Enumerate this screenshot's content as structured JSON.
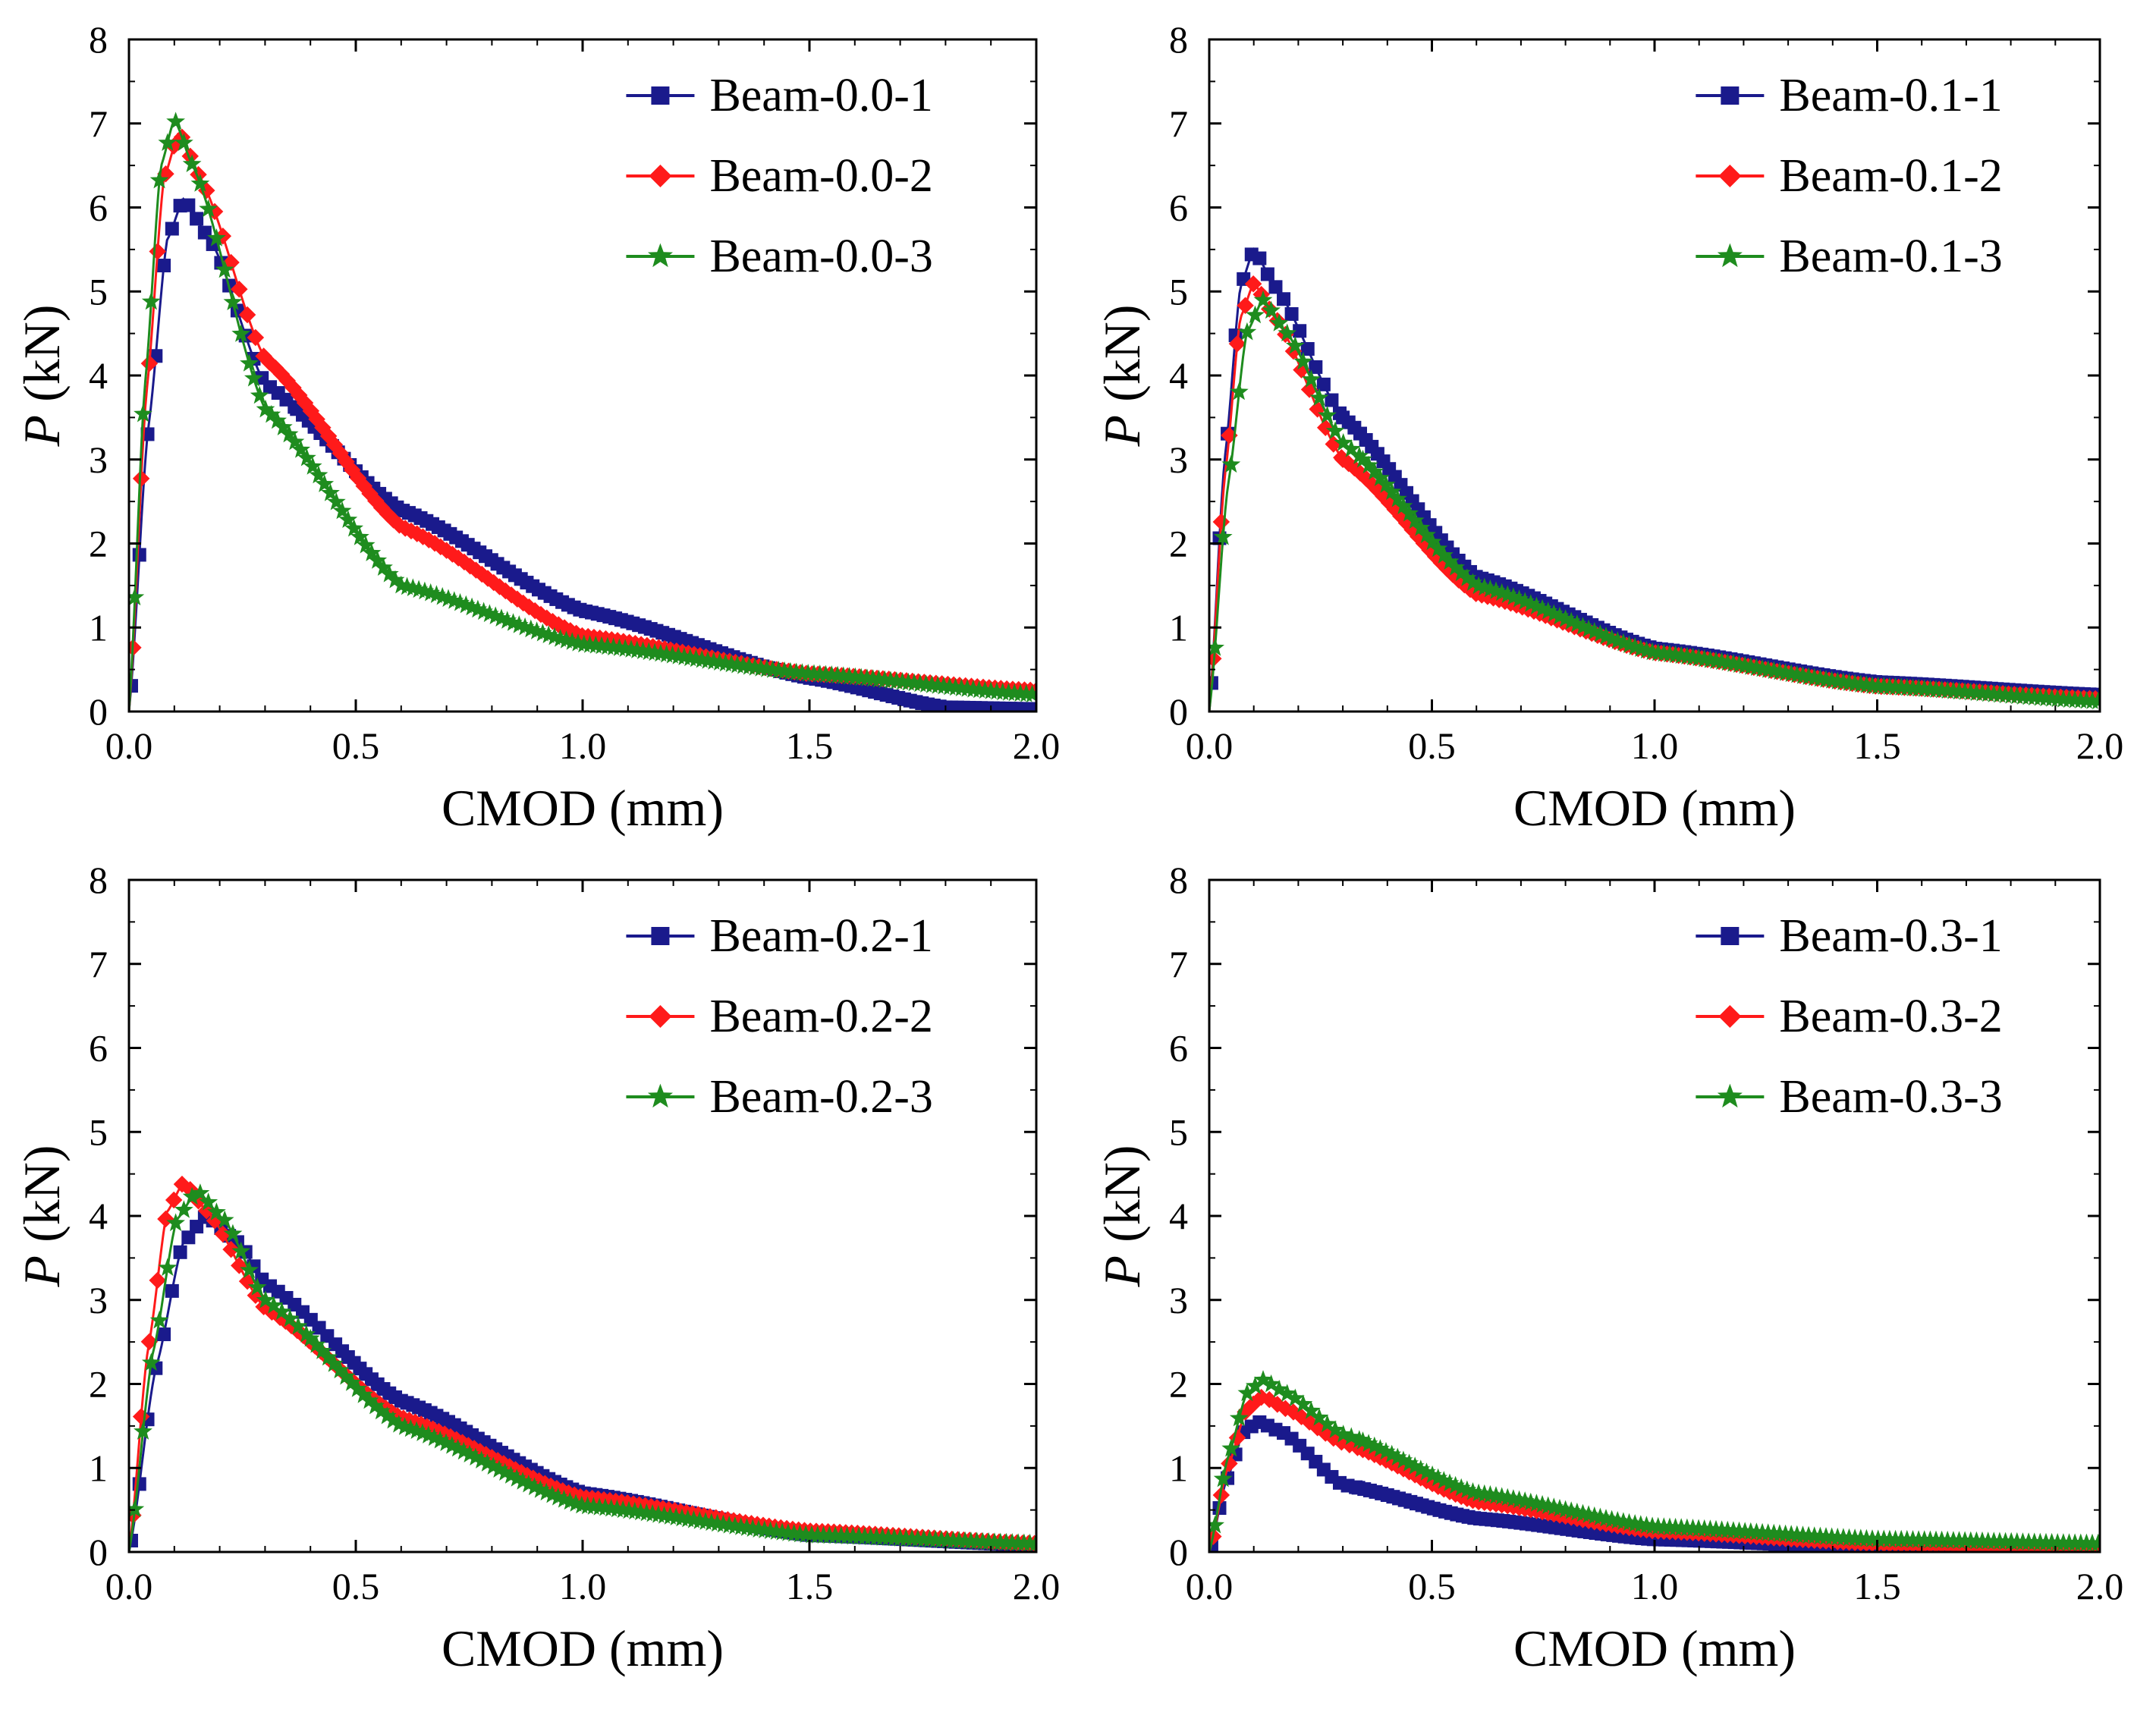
{
  "figure": {
    "colors": {
      "blue": "#1a1a8c",
      "red": "#ff1a1a",
      "green": "#1e8c1e"
    },
    "marker_names": {
      "blue": "square-marker",
      "red": "diamond-marker",
      "green": "star-marker"
    }
  },
  "chart_data": [
    {
      "type": "line",
      "title": "",
      "xlabel": "CMOD (mm)",
      "ylabel_italic": "P",
      "ylabel_rest": " (kN)",
      "xlim": [
        0,
        2.0
      ],
      "ylim": [
        0,
        8
      ],
      "xticks": [
        "0.0",
        "0.5",
        "1.0",
        "1.5",
        "2.0"
      ],
      "yticks": [
        "0",
        "1",
        "2",
        "3",
        "4",
        "5",
        "6",
        "7",
        "8"
      ],
      "legend_position": "top-right",
      "series": [
        {
          "name": "Beam-0.0-1",
          "color": "#1a1a8c",
          "marker": "square",
          "peak": 6.1,
          "peakX": 0.12,
          "width": 0.1,
          "tail": [
            [
              0.3,
              3.9
            ],
            [
              0.6,
              2.4
            ],
            [
              1.0,
              1.2
            ],
            [
              1.5,
              0.4
            ],
            [
              1.8,
              0.05
            ],
            [
              2.0,
              0.03
            ]
          ]
        },
        {
          "name": "Beam-0.0-2",
          "color": "#ff1a1a",
          "marker": "diamond",
          "peak": 6.9,
          "peakX": 0.11,
          "width": 0.08,
          "tail": [
            [
              0.3,
              4.2
            ],
            [
              0.6,
              2.2
            ],
            [
              1.0,
              0.9
            ],
            [
              1.5,
              0.45
            ],
            [
              2.0,
              0.25
            ]
          ]
        },
        {
          "name": "Beam-0.0-3",
          "color": "#1e8c1e",
          "marker": "star",
          "peak": 7.05,
          "peakX": 0.1,
          "width": 0.07,
          "tail": [
            [
              0.3,
              3.6
            ],
            [
              0.6,
              1.5
            ],
            [
              1.0,
              0.8
            ],
            [
              1.5,
              0.45
            ],
            [
              2.0,
              0.2
            ]
          ]
        }
      ]
    },
    {
      "type": "line",
      "title": "",
      "xlabel": "CMOD (mm)",
      "ylabel_italic": "P",
      "ylabel_rest": " (kN)",
      "xlim": [
        0,
        2.0
      ],
      "ylim": [
        0,
        8
      ],
      "xticks": [
        "0.0",
        "0.5",
        "1.0",
        "1.5",
        "2.0"
      ],
      "yticks": [
        "0",
        "1",
        "2",
        "3",
        "4",
        "5",
        "6",
        "7",
        "8"
      ],
      "legend_position": "top-right",
      "series": [
        {
          "name": "Beam-0.1-1",
          "color": "#1a1a8c",
          "marker": "square",
          "peak": 5.5,
          "peakX": 0.1,
          "width": 0.08,
          "tail": [
            [
              0.3,
              3.5
            ],
            [
              0.6,
              1.6
            ],
            [
              1.0,
              0.75
            ],
            [
              1.5,
              0.35
            ],
            [
              2.0,
              0.2
            ]
          ]
        },
        {
          "name": "Beam-0.1-2",
          "color": "#ff1a1a",
          "marker": "diamond",
          "peak": 5.1,
          "peakX": 0.1,
          "width": 0.08,
          "tail": [
            [
              0.3,
              3.0
            ],
            [
              0.6,
              1.4
            ],
            [
              1.0,
              0.7
            ],
            [
              1.5,
              0.3
            ],
            [
              2.0,
              0.15
            ]
          ]
        },
        {
          "name": "Beam-0.1-3",
          "color": "#1e8c1e",
          "marker": "star",
          "peak": 4.9,
          "peakX": 0.12,
          "width": 0.09,
          "tail": [
            [
              0.3,
              3.2
            ],
            [
              0.6,
              1.5
            ],
            [
              1.0,
              0.7
            ],
            [
              1.5,
              0.3
            ],
            [
              2.0,
              0.12
            ]
          ]
        }
      ]
    },
    {
      "type": "line",
      "title": "",
      "xlabel": "CMOD (mm)",
      "ylabel_italic": "P",
      "ylabel_rest": " (kN)",
      "xlim": [
        0,
        2.0
      ],
      "ylim": [
        0,
        8
      ],
      "xticks": [
        "0.0",
        "0.5",
        "1.0",
        "1.5",
        "2.0"
      ],
      "yticks": [
        "0",
        "1",
        "2",
        "3",
        "4",
        "5",
        "6",
        "7",
        "8"
      ],
      "legend_position": "top-right",
      "series": [
        {
          "name": "Beam-0.2-1",
          "color": "#1a1a8c",
          "marker": "square",
          "peak": 4.0,
          "peakX": 0.17,
          "width": 0.12,
          "tail": [
            [
              0.3,
              3.2
            ],
            [
              0.6,
              1.8
            ],
            [
              1.0,
              0.7
            ],
            [
              1.5,
              0.2
            ],
            [
              2.0,
              0.08
            ]
          ]
        },
        {
          "name": "Beam-0.2-2",
          "color": "#ff1a1a",
          "marker": "diamond",
          "peak": 4.4,
          "peakX": 0.12,
          "width": 0.09,
          "tail": [
            [
              0.3,
              2.9
            ],
            [
              0.6,
              1.6
            ],
            [
              1.0,
              0.65
            ],
            [
              1.5,
              0.25
            ],
            [
              2.0,
              0.1
            ]
          ]
        },
        {
          "name": "Beam-0.2-3",
          "color": "#1e8c1e",
          "marker": "star",
          "peak": 4.3,
          "peakX": 0.15,
          "width": 0.1,
          "tail": [
            [
              0.3,
              3.0
            ],
            [
              0.6,
              1.5
            ],
            [
              1.0,
              0.55
            ],
            [
              1.5,
              0.2
            ],
            [
              2.0,
              0.1
            ]
          ]
        }
      ]
    },
    {
      "type": "line",
      "title": "",
      "xlabel": "CMOD (mm)",
      "ylabel_italic": "P",
      "ylabel_rest": " (kN)",
      "xlim": [
        0,
        2.0
      ],
      "ylim": [
        0,
        8
      ],
      "xticks": [
        "0.0",
        "0.5",
        "1.0",
        "1.5",
        "2.0"
      ],
      "yticks": [
        "0",
        "1",
        "2",
        "3",
        "4",
        "5",
        "6",
        "7",
        "8"
      ],
      "legend_position": "top-right",
      "series": [
        {
          "name": "Beam-0.3-1",
          "color": "#1a1a8c",
          "marker": "square",
          "peak": 1.55,
          "peakX": 0.11,
          "width": 0.09,
          "tail": [
            [
              0.3,
              0.8
            ],
            [
              0.6,
              0.4
            ],
            [
              1.0,
              0.15
            ],
            [
              1.5,
              0.05
            ],
            [
              2.0,
              0.05
            ]
          ]
        },
        {
          "name": "Beam-0.3-2",
          "color": "#ff1a1a",
          "marker": "diamond",
          "peak": 1.85,
          "peakX": 0.12,
          "width": 0.09,
          "tail": [
            [
              0.3,
              1.3
            ],
            [
              0.6,
              0.6
            ],
            [
              1.0,
              0.25
            ],
            [
              1.5,
              0.1
            ],
            [
              2.0,
              0.05
            ]
          ]
        },
        {
          "name": "Beam-0.3-3",
          "color": "#1e8c1e",
          "marker": "star",
          "peak": 2.05,
          "peakX": 0.12,
          "width": 0.09,
          "tail": [
            [
              0.3,
              1.4
            ],
            [
              0.6,
              0.7
            ],
            [
              1.0,
              0.3
            ],
            [
              1.5,
              0.15
            ],
            [
              2.0,
              0.1
            ]
          ]
        }
      ]
    }
  ]
}
